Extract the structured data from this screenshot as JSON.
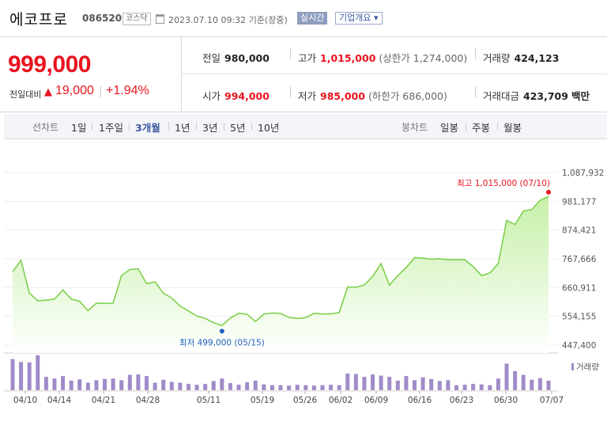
{
  "header": {
    "stock_name": "에코프로",
    "stock_code": "086520",
    "market": "코스닥",
    "datetime": "2023.07.10 09:32",
    "basis": "기준(장중)",
    "realtime_button": "실시간",
    "company_info_button": "기업개요 ▾"
  },
  "summary": {
    "current_price": "999,000",
    "change_label": "전일대비",
    "change_arrow": "▲",
    "change_value": "19,000",
    "change_percent": "+1.94%",
    "prev_close_label": "전일",
    "prev_close": "980,000",
    "open_label": "시가",
    "open": "994,000",
    "high_label": "고가",
    "high": "1,015,000",
    "upper_limit": "(상한가 1,274,000)",
    "low_label": "저가",
    "low": "985,000",
    "lower_limit": "(하한가 686,000)",
    "volume_label": "거래량",
    "volume": "424,123",
    "amount_label": "거래대금",
    "amount": "423,709",
    "amount_unit": "백만"
  },
  "period_bar": {
    "line_chart_label": "선차트",
    "line_periods": [
      "1일",
      "1주일",
      "3개월",
      "1년",
      "3년",
      "5년",
      "10년"
    ],
    "active_period": "3개월",
    "candle_chart_label": "봉차트",
    "candle_periods": [
      "일봉",
      "주봉",
      "월봉"
    ]
  },
  "colors": {
    "up": "#e8141e",
    "line": "#7ed14e",
    "area_top": "#c6f0a8",
    "volume_bar": "#a08bc8",
    "low_marker": "#1f5fc0"
  },
  "chart_data": {
    "type": "area",
    "x_ticks": [
      "04/10",
      "04/14",
      "04/21",
      "04/28",
      "05/11",
      "05/19",
      "05/26",
      "06/02",
      "06/09",
      "06/16",
      "06/23",
      "06/30",
      "07/07"
    ],
    "y_ticks": [
      "1,087,932",
      "981,177",
      "874,421",
      "767,666",
      "660,911",
      "554,155",
      "447,400"
    ],
    "ylim": [
      447400,
      1087932
    ],
    "high_label": "최고 1,015,000 (07/10)",
    "low_label": "최저 499,000 (05/15)",
    "volume_legend": "거래량",
    "series": [
      {
        "values": [
          720000,
          762000,
          640000,
          612000,
          614000,
          618000,
          652000,
          618000,
          610000,
          575000,
          603000,
          602000,
          603000,
          705000,
          728000,
          730000,
          675000,
          682000,
          640000,
          622000,
          592000,
          574000,
          555000,
          546000,
          530000,
          520000,
          548000,
          565000,
          562000,
          535000,
          562000,
          566000,
          565000,
          550000,
          546000,
          549000,
          565000,
          563000,
          563000,
          568000,
          663000,
          662000,
          670000,
          702000,
          750000,
          670000,
          705000,
          735000,
          772000,
          770000,
          766000,
          768000,
          764000,
          764000,
          764000,
          739000,
          705000,
          715000,
          750000,
          910000,
          895000,
          945000,
          950000,
          985000,
          999000
        ]
      }
    ],
    "volume": [
      75,
      68,
      67,
      84,
      32,
      28,
      34,
      23,
      26,
      18,
      24,
      27,
      28,
      24,
      37,
      38,
      34,
      18,
      25,
      20,
      18,
      15,
      13,
      15,
      22,
      28,
      17,
      13,
      19,
      23,
      14,
      12,
      12,
      11,
      13,
      12,
      11,
      12,
      13,
      12,
      40,
      39,
      32,
      38,
      35,
      32,
      23,
      34,
      24,
      31,
      27,
      22,
      24,
      12,
      13,
      15,
      14,
      12,
      28,
      64,
      46,
      37,
      25,
      29,
      23
    ]
  }
}
